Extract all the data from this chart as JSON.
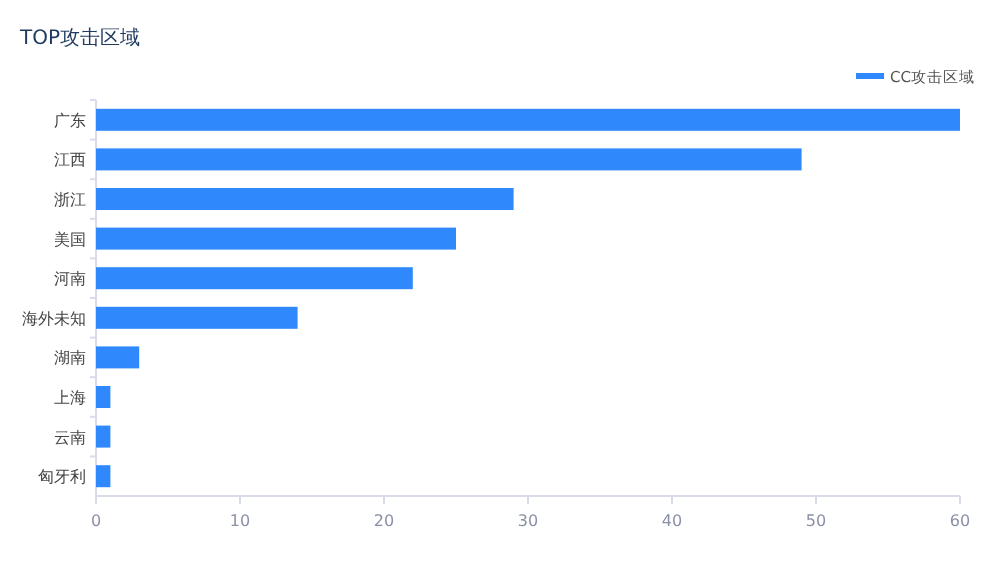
{
  "chart_data": {
    "type": "bar",
    "orientation": "horizontal",
    "title": "TOP攻击区域",
    "categories": [
      "广东",
      "江西",
      "浙江",
      "美国",
      "河南",
      "海外未知",
      "湖南",
      "上海",
      "云南",
      "匈牙利"
    ],
    "series": [
      {
        "name": "CC攻击区域",
        "color": "#2f89fc",
        "values": [
          60,
          49,
          29,
          25,
          22,
          14,
          3,
          1,
          1,
          1
        ]
      }
    ],
    "xlim": [
      0,
      60
    ],
    "xticks": [
      0,
      10,
      20,
      30,
      40,
      50,
      60
    ],
    "grid": false,
    "legend": "top right"
  }
}
